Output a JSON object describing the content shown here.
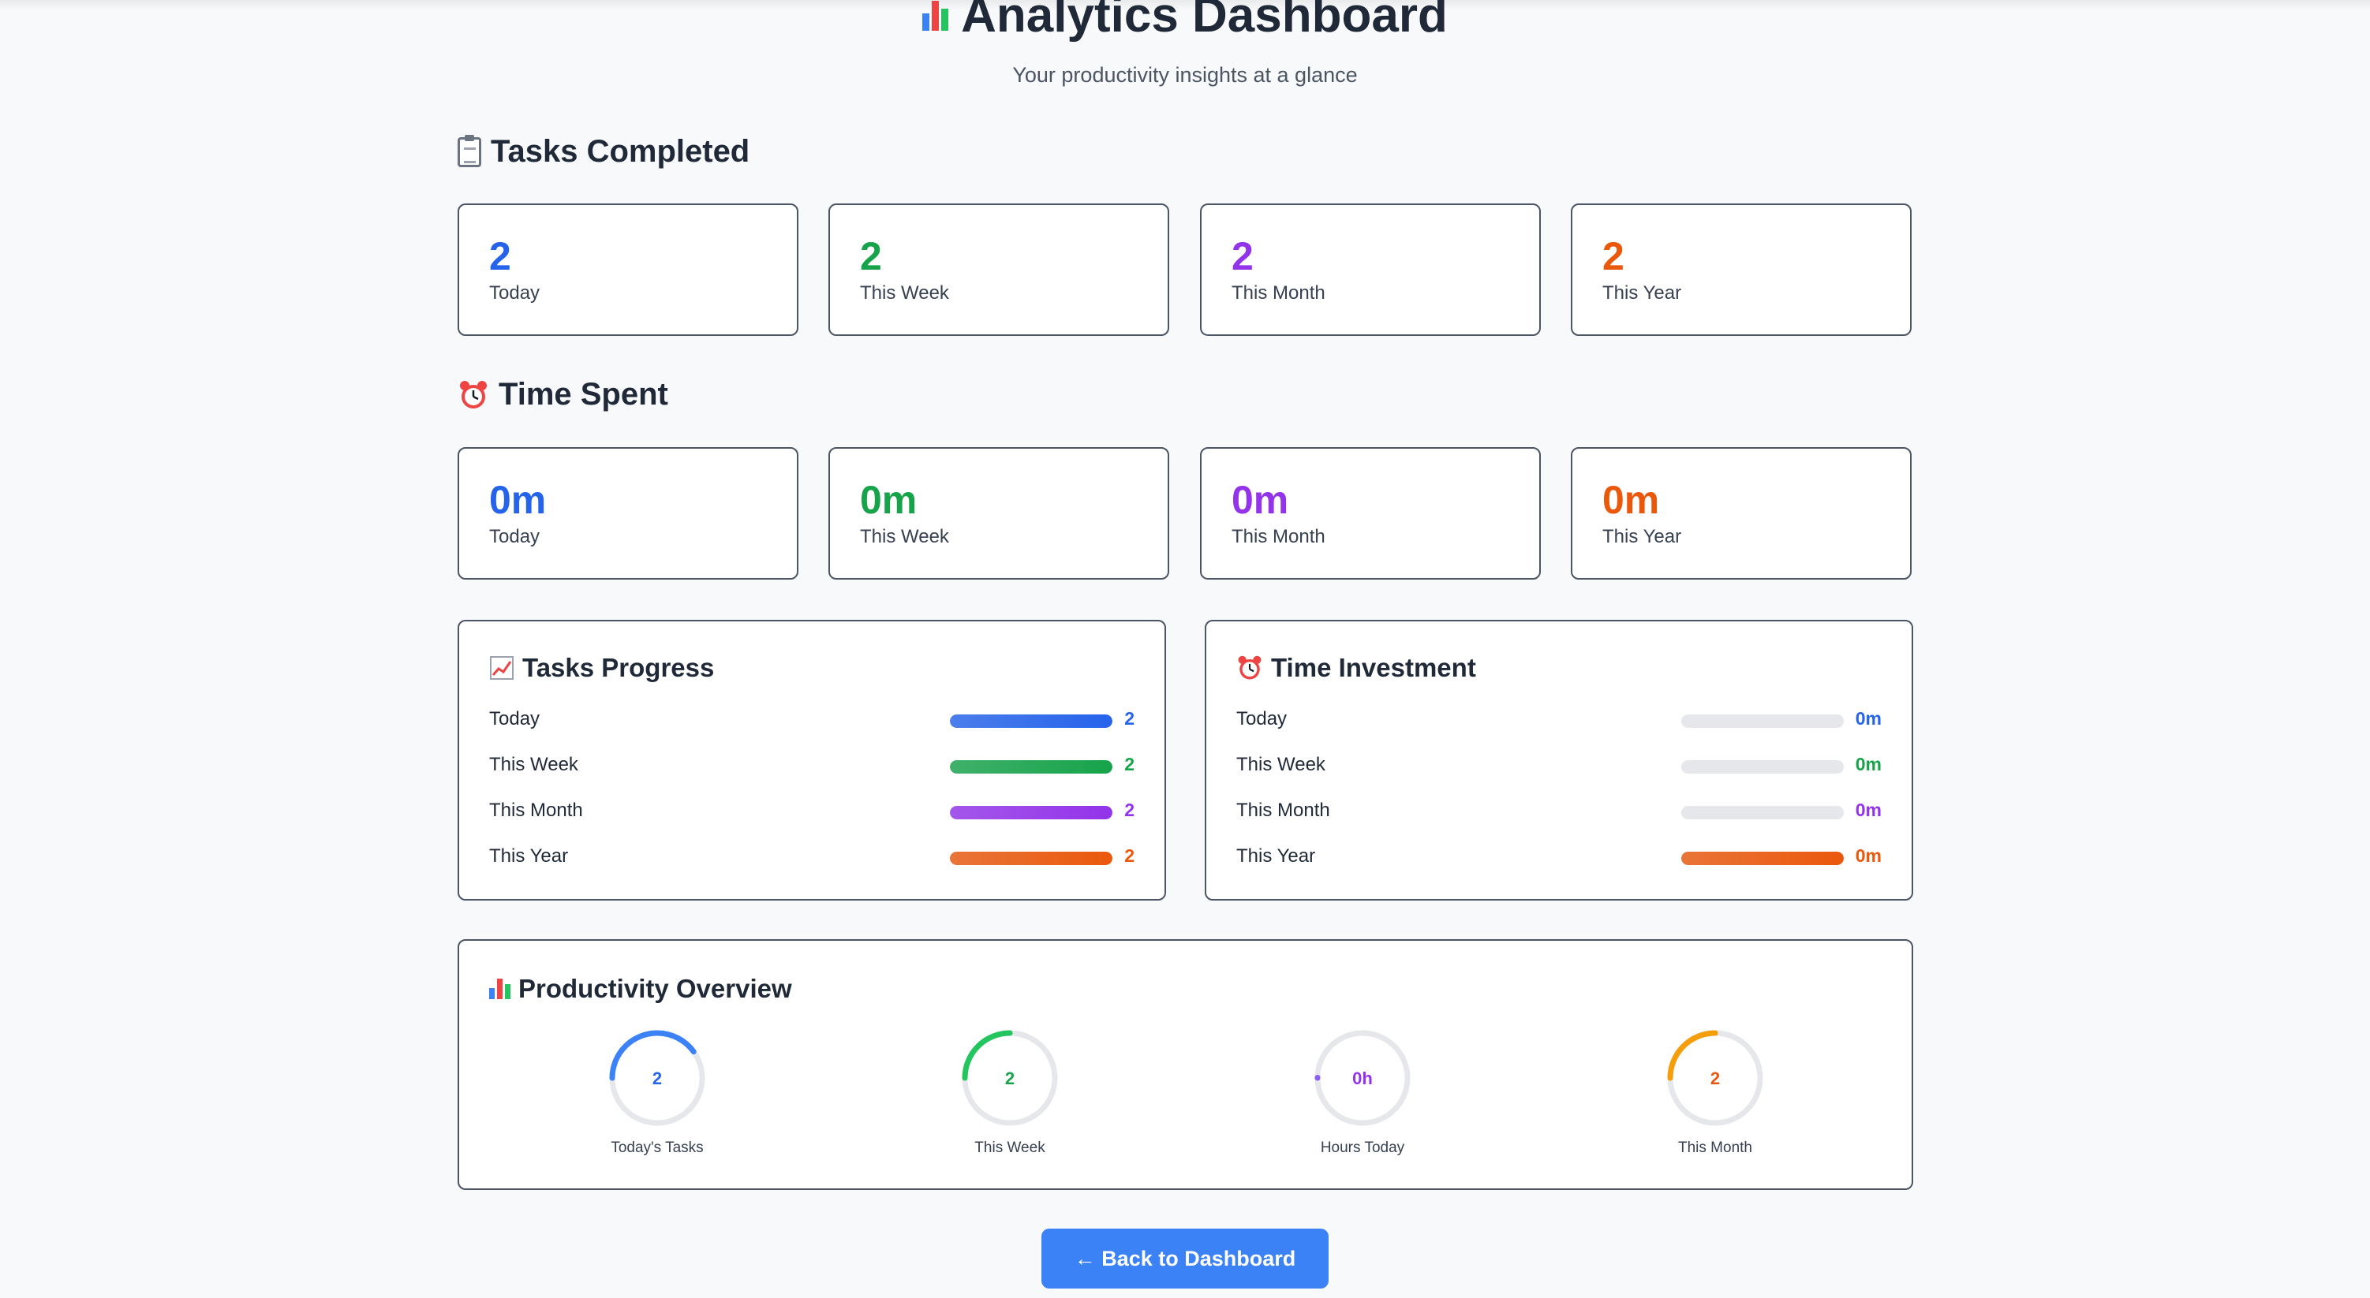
{
  "header": {
    "title": "Analytics Dashboard",
    "title_icon": "bar-chart-icon",
    "subtitle": "Your productivity insights at a glance"
  },
  "tasks_completed": {
    "title": "Tasks Completed",
    "icon": "clipboard-icon",
    "cards": [
      {
        "value": "2",
        "label": "Today",
        "color": "#2563eb"
      },
      {
        "value": "2",
        "label": "This Week",
        "color": "#16a34a"
      },
      {
        "value": "2",
        "label": "This Month",
        "color": "#9333ea"
      },
      {
        "value": "2",
        "label": "This Year",
        "color": "#ea580c"
      }
    ]
  },
  "time_spent": {
    "title": "Time Spent",
    "icon": "alarm-clock-icon",
    "cards": [
      {
        "value": "0m",
        "label": "Today",
        "color": "#2563eb"
      },
      {
        "value": "0m",
        "label": "This Week",
        "color": "#16a34a"
      },
      {
        "value": "0m",
        "label": "This Month",
        "color": "#9333ea"
      },
      {
        "value": "0m",
        "label": "This Year",
        "color": "#ea580c"
      }
    ]
  },
  "tasks_progress": {
    "title": "Tasks Progress",
    "icon": "chart-increasing-icon",
    "rows": [
      {
        "label": "Today",
        "value": "2",
        "fill": 1.0,
        "color": "#2563eb"
      },
      {
        "label": "This Week",
        "value": "2",
        "fill": 1.0,
        "color": "#16a34a"
      },
      {
        "label": "This Month",
        "value": "2",
        "fill": 1.0,
        "color": "#9333ea"
      },
      {
        "label": "This Year",
        "value": "2",
        "fill": 1.0,
        "color": "#ea580c"
      }
    ]
  },
  "time_investment": {
    "title": "Time Investment",
    "icon": "alarm-clock-icon",
    "rows": [
      {
        "label": "Today",
        "value": "0m",
        "fill": 0.0,
        "color": "#2563eb"
      },
      {
        "label": "This Week",
        "value": "0m",
        "fill": 0.0,
        "color": "#16a34a"
      },
      {
        "label": "This Month",
        "value": "0m",
        "fill": 0.0,
        "color": "#9333ea"
      },
      {
        "label": "This Year",
        "value": "0m",
        "fill": 1.0,
        "color": "#ea580c"
      }
    ]
  },
  "productivity_overview": {
    "title": "Productivity Overview",
    "icon": "bar-chart-icon",
    "rings": [
      {
        "value": "2",
        "label": "Today's Tasks",
        "fill": 0.4,
        "color": "#3b82f6",
        "text_color": "#2563eb"
      },
      {
        "value": "2",
        "label": "This Week",
        "fill": 0.25,
        "color": "#22c55e",
        "text_color": "#16a34a"
      },
      {
        "value": "0h",
        "label": "Hours Today",
        "fill": 0.0,
        "color": "#8b5cf6",
        "text_color": "#9333ea"
      },
      {
        "value": "2",
        "label": "This Month",
        "fill": 0.25,
        "color": "#f59e0b",
        "text_color": "#ea580c"
      }
    ]
  },
  "footer": {
    "back_button_label": "← Back to Dashboard"
  }
}
